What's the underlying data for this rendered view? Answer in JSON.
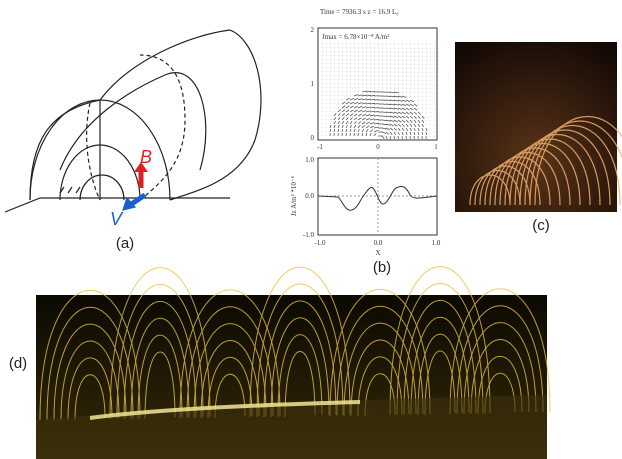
{
  "panels": {
    "a": {
      "label": "(a)",
      "vector_b": "B",
      "vector_v": "V"
    },
    "b": {
      "label": "(b)",
      "title": "Time = 7936.3 s   z = 16.9 L₀",
      "legend": "Jmax = 6.78×10⁻⁸ A/m²",
      "top_plot": {
        "yticks": [
          "0",
          "1",
          "2"
        ],
        "xticks": [
          "-1",
          "0",
          "1"
        ]
      },
      "bottom_plot": {
        "yticks": [
          "1.0",
          "0.0",
          "-1.0"
        ],
        "xticks": [
          "-1.0",
          "0.0",
          "1.0"
        ],
        "ylabel": "Jz A/m² *10⁻⁶",
        "xlabel": "X"
      }
    },
    "c": {
      "label": "(c)"
    },
    "d": {
      "label": "(d)"
    }
  }
}
